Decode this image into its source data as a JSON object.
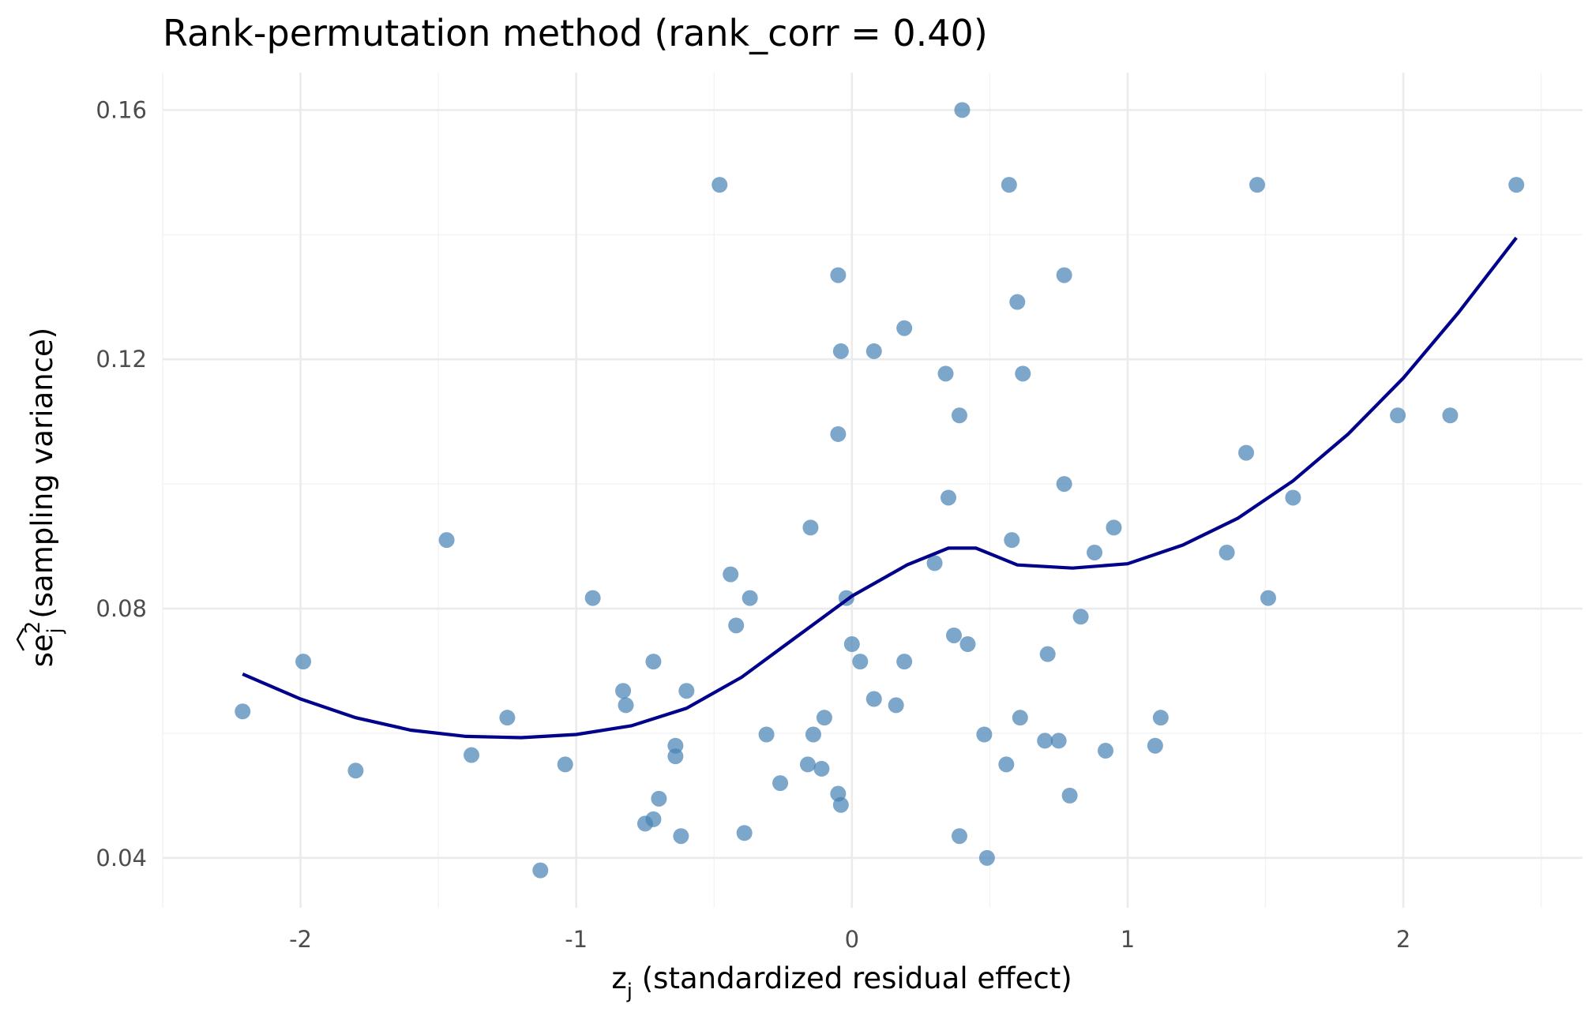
{
  "chart_data": {
    "type": "scatter",
    "title": "Rank-permutation method (rank_corr = 0.40)",
    "xlabel": {
      "base": "z",
      "sub": "j",
      "rest": " (standardized residual effect)"
    },
    "ylabel": {
      "base": "se",
      "sup": "2",
      "sub": "j",
      "rest": " (sampling variance)"
    },
    "xlim": [
      -2.5,
      2.65
    ],
    "ylim": [
      0.032,
      0.166
    ],
    "x_ticks": [
      -2,
      -1,
      0,
      1,
      2
    ],
    "y_ticks": [
      0.04,
      0.08,
      0.12,
      0.16
    ],
    "x_tick_labels": [
      "-2",
      "-1",
      "0",
      "1",
      "2"
    ],
    "y_tick_labels": [
      "0.04",
      "0.08",
      "0.12",
      "0.16"
    ],
    "grid": true,
    "colors": {
      "points": "#4682B4",
      "trend": "#00008B"
    },
    "series": [
      {
        "type": "scatter",
        "points": [
          [
            -2.21,
            0.0635
          ],
          [
            -1.99,
            0.0715
          ],
          [
            -1.8,
            0.054
          ],
          [
            -1.47,
            0.091
          ],
          [
            -1.38,
            0.0565
          ],
          [
            -1.25,
            0.0625
          ],
          [
            -1.13,
            0.038
          ],
          [
            -1.04,
            0.055
          ],
          [
            -0.94,
            0.0817
          ],
          [
            -0.83,
            0.0668
          ],
          [
            -0.82,
            0.0645
          ],
          [
            -0.75,
            0.0455
          ],
          [
            -0.72,
            0.0462
          ],
          [
            -0.72,
            0.0715
          ],
          [
            -0.7,
            0.0495
          ],
          [
            -0.64,
            0.058
          ],
          [
            -0.64,
            0.0563
          ],
          [
            -0.62,
            0.0435
          ],
          [
            -0.6,
            0.0668
          ],
          [
            -0.48,
            0.148
          ],
          [
            -0.44,
            0.0855
          ],
          [
            -0.42,
            0.0773
          ],
          [
            -0.39,
            0.044
          ],
          [
            -0.37,
            0.0817
          ],
          [
            -0.31,
            0.0598
          ],
          [
            -0.26,
            0.052
          ],
          [
            -0.16,
            0.055
          ],
          [
            -0.15,
            0.093
          ],
          [
            -0.14,
            0.0598
          ],
          [
            -0.11,
            0.0543
          ],
          [
            -0.1,
            0.0625
          ],
          [
            -0.05,
            0.108
          ],
          [
            -0.05,
            0.0503
          ],
          [
            -0.05,
            0.1335
          ],
          [
            -0.04,
            0.1213
          ],
          [
            -0.04,
            0.0485
          ],
          [
            -0.02,
            0.0817
          ],
          [
            0.0,
            0.0743
          ],
          [
            0.03,
            0.0715
          ],
          [
            0.08,
            0.0655
          ],
          [
            0.08,
            0.1213
          ],
          [
            0.16,
            0.0645
          ],
          [
            0.19,
            0.125
          ],
          [
            0.19,
            0.0715
          ],
          [
            0.3,
            0.0873
          ],
          [
            0.34,
            0.1177
          ],
          [
            0.35,
            0.0978
          ],
          [
            0.37,
            0.0757
          ],
          [
            0.39,
            0.111
          ],
          [
            0.39,
            0.0435
          ],
          [
            0.4,
            0.16
          ],
          [
            0.42,
            0.0743
          ],
          [
            0.48,
            0.0598
          ],
          [
            0.49,
            0.04
          ],
          [
            0.56,
            0.055
          ],
          [
            0.57,
            0.148
          ],
          [
            0.58,
            0.091
          ],
          [
            0.6,
            0.1292
          ],
          [
            0.61,
            0.0625
          ],
          [
            0.62,
            0.1177
          ],
          [
            0.7,
            0.0588
          ],
          [
            0.71,
            0.0727
          ],
          [
            0.75,
            0.0588
          ],
          [
            0.77,
            0.1335
          ],
          [
            0.77,
            0.1
          ],
          [
            0.79,
            0.05
          ],
          [
            0.83,
            0.0787
          ],
          [
            0.88,
            0.089
          ],
          [
            0.92,
            0.0572
          ],
          [
            0.95,
            0.093
          ],
          [
            1.1,
            0.058
          ],
          [
            1.12,
            0.0625
          ],
          [
            1.36,
            0.089
          ],
          [
            1.43,
            0.105
          ],
          [
            1.47,
            0.148
          ],
          [
            1.51,
            0.0817
          ],
          [
            1.6,
            0.0978
          ],
          [
            1.98,
            0.111
          ],
          [
            2.17,
            0.111
          ],
          [
            2.41,
            0.148
          ]
        ]
      },
      {
        "type": "line",
        "points": [
          [
            -2.21,
            0.0695
          ],
          [
            -2.0,
            0.0655
          ],
          [
            -1.8,
            0.0625
          ],
          [
            -1.6,
            0.0605
          ],
          [
            -1.4,
            0.0595
          ],
          [
            -1.2,
            0.0593
          ],
          [
            -1.0,
            0.0598
          ],
          [
            -0.8,
            0.0612
          ],
          [
            -0.6,
            0.064
          ],
          [
            -0.4,
            0.069
          ],
          [
            -0.2,
            0.0755
          ],
          [
            0.0,
            0.082
          ],
          [
            0.2,
            0.087
          ],
          [
            0.35,
            0.0897
          ],
          [
            0.45,
            0.0897
          ],
          [
            0.6,
            0.087
          ],
          [
            0.8,
            0.0865
          ],
          [
            1.0,
            0.0872
          ],
          [
            1.2,
            0.0902
          ],
          [
            1.4,
            0.0945
          ],
          [
            1.6,
            0.1005
          ],
          [
            1.8,
            0.108
          ],
          [
            2.0,
            0.117
          ],
          [
            2.2,
            0.1275
          ],
          [
            2.41,
            0.1395
          ]
        ]
      }
    ]
  }
}
